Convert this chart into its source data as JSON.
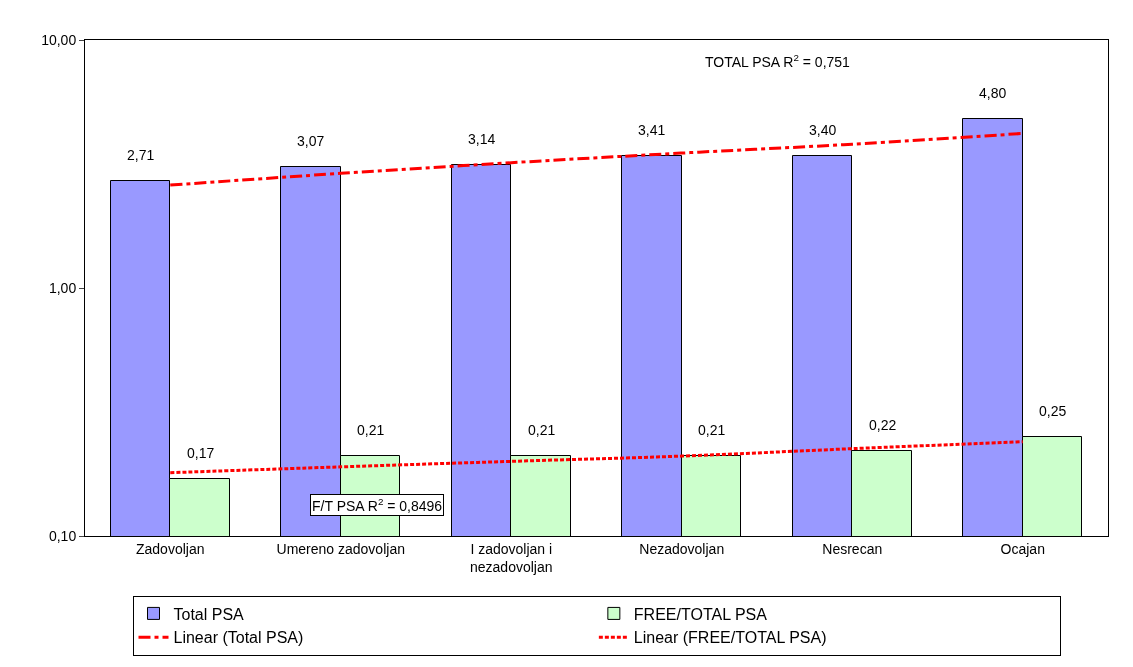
{
  "chart_data": {
    "type": "bar",
    "log": "y",
    "legend": "bottom",
    "categories": [
      "Zadovoljan",
      "Umereno zadovoljan",
      "I zadovoljan i nezadovoljan",
      "Nezadovoljan",
      "Nesrecan",
      "Ocajan"
    ],
    "ylim": [
      0.1,
      10
    ],
    "yticks": [
      {
        "value": 0.1,
        "label": "0,10"
      },
      {
        "value": 1,
        "label": "1,00"
      },
      {
        "value": 10,
        "label": "10,00"
      }
    ],
    "series": [
      {
        "name": "Total PSA",
        "color": "#9999ff",
        "values": [
          2.71,
          3.07,
          3.14,
          3.41,
          3.4,
          4.8
        ],
        "value_labels": [
          "2,71",
          "3,07",
          "3,14",
          "3,41",
          "3,40",
          "4,80"
        ]
      },
      {
        "name": "FREE/TOTAL PSA",
        "color": "#ccffcc",
        "values": [
          0.17,
          0.21,
          0.21,
          0.21,
          0.22,
          0.25
        ],
        "value_labels": [
          "0,17",
          "0,21",
          "0,21",
          "0,21",
          "0,22",
          "0,25"
        ]
      },
      {
        "name": "Linear (Total PSA)",
        "type": "line",
        "line_style": "dashed",
        "color": "#ff0000",
        "values": [
          2.6,
          2.9,
          3.2,
          3.5,
          3.8,
          4.2
        ]
      },
      {
        "name": "Linear (FREE/TOTAL PSA)",
        "type": "line",
        "line_style": "dotted",
        "color": "#ff0000",
        "values": [
          0.18,
          0.19,
          0.2,
          0.21,
          0.225,
          0.24
        ]
      }
    ],
    "annotations": [
      "TOTAL PSA R$^{2}$ = 0,751",
      "F/T PSA R$^{2}$ = 0,8496"
    ]
  }
}
